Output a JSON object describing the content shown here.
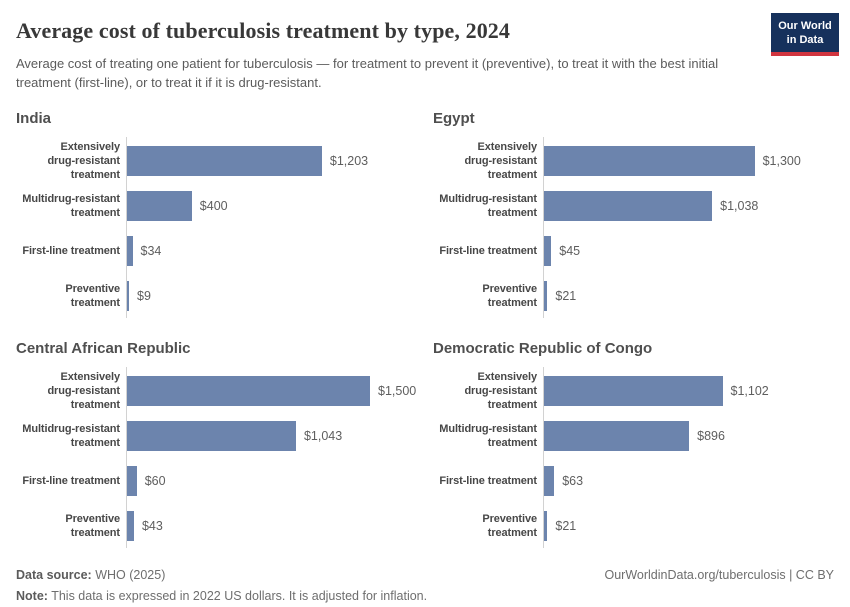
{
  "header": {
    "title": "Average cost of tuberculosis treatment by type, 2024",
    "subtitle": "Average cost of treating one patient for tuberculosis — for treatment to prevent it (preventive), to treat it with the best initial treatment (first-line), or to treat it if it is drug-resistant.",
    "logo": {
      "line1": "Our World",
      "line2": "in Data",
      "bg_color": "#16315c",
      "accent_color": "#d1353f"
    }
  },
  "chart_data": {
    "type": "bar",
    "orientation": "horizontal",
    "unit": "2022 US dollars",
    "grid": false,
    "legend": false,
    "xmax": 1500,
    "bar_color": "#6c84ad",
    "categories": [
      "Extensively drug-resistant treatment",
      "Multidrug-resistant treatment",
      "First-line treatment",
      "Preventive treatment"
    ],
    "category_labels_wrapped": [
      [
        "Extensively",
        "drug-resistant",
        "treatment"
      ],
      [
        "Multidrug-resistant",
        "treatment"
      ],
      [
        "First-line treatment"
      ],
      [
        "Preventive",
        "treatment"
      ]
    ],
    "panels": [
      {
        "title": "India",
        "values": [
          1203,
          400,
          34,
          9
        ],
        "value_labels": [
          "$1,203",
          "$400",
          "$34",
          "$9"
        ]
      },
      {
        "title": "Egypt",
        "values": [
          1300,
          1038,
          45,
          21
        ],
        "value_labels": [
          "$1,300",
          "$1,038",
          "$45",
          "$21"
        ]
      },
      {
        "title": "Central African Republic",
        "values": [
          1500,
          1043,
          60,
          43
        ],
        "value_labels": [
          "$1,500",
          "$1,043",
          "$60",
          "$43"
        ]
      },
      {
        "title": "Democratic Republic of Congo",
        "values": [
          1102,
          896,
          63,
          21
        ],
        "value_labels": [
          "$1,102",
          "$896",
          "$63",
          "$21"
        ]
      }
    ]
  },
  "footer": {
    "source_label": "Data source:",
    "source_text": " WHO (2025)",
    "note_label": "Note:",
    "note_text": " This data is expressed in 2022 US dollars. It is adjusted for inflation.",
    "attribution": "OurWorldinData.org/tuberculosis | CC BY"
  }
}
